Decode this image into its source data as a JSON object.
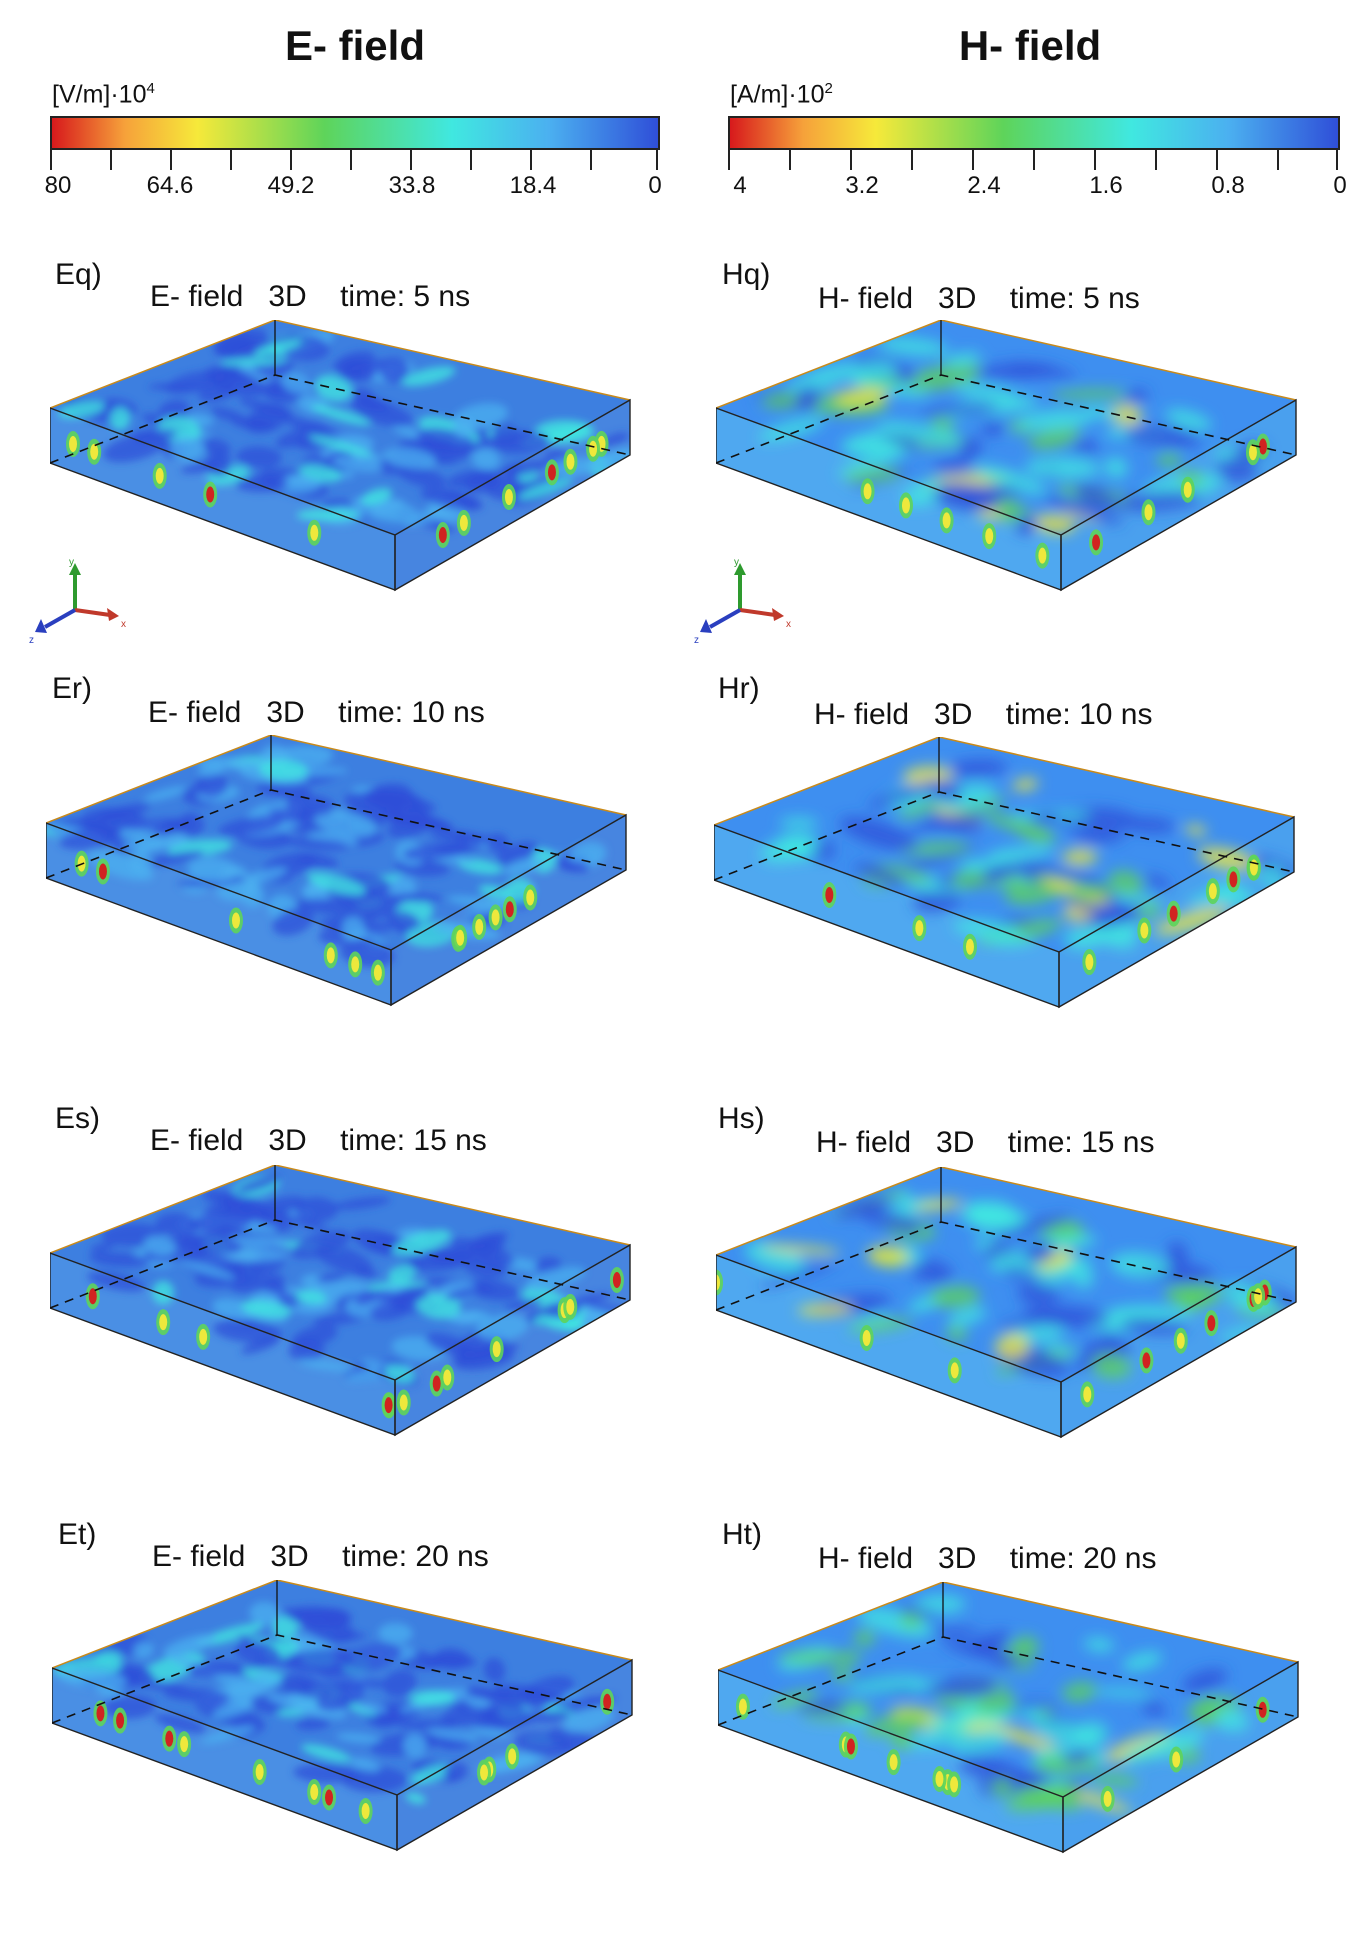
{
  "columns": {
    "e": {
      "title": "E- field",
      "unit_text": "[V/m]·10",
      "unit_exp": "4",
      "ticks": [
        "80",
        "64.6",
        "49.2",
        "33.8",
        "18.4",
        "0"
      ],
      "scale_max": 80,
      "scale_min": 0
    },
    "h": {
      "title": "H- field",
      "unit_text": "[A/m]·10",
      "unit_exp": "2",
      "ticks": [
        "4",
        "3.2",
        "2.4",
        "1.6",
        "0.8",
        "0"
      ],
      "scale_max": 4,
      "scale_min": 0
    }
  },
  "colormap": [
    "#d7191c",
    "#f6e93a",
    "#5ed45a",
    "#40e8e0",
    "#4bb0f0",
    "#2f4fd8"
  ],
  "panels": {
    "eq": {
      "label": "Eq)",
      "title": "E- field   3D    time: 5 ns",
      "time_ns": 5
    },
    "er": {
      "label": "Er)",
      "title": "E- field   3D    time: 10 ns",
      "time_ns": 10
    },
    "es": {
      "label": "Es)",
      "title": "E- field   3D    time: 15 ns",
      "time_ns": 15
    },
    "et": {
      "label": "Et)",
      "title": "E- field   3D    time: 20 ns",
      "time_ns": 20
    },
    "hq": {
      "label": "Hq)",
      "title": "H- field   3D    time: 5 ns",
      "time_ns": 5
    },
    "hr": {
      "label": "Hr)",
      "title": "H- field   3D    time: 10 ns",
      "time_ns": 10
    },
    "hs": {
      "label": "Hs)",
      "title": "H- field   3D    time: 15 ns",
      "time_ns": 15
    },
    "ht": {
      "label": "Ht)",
      "title": "H- field   3D    time: 20 ns",
      "time_ns": 20
    }
  },
  "axes_labels": {
    "x": "x",
    "y": "y",
    "z": "z"
  }
}
